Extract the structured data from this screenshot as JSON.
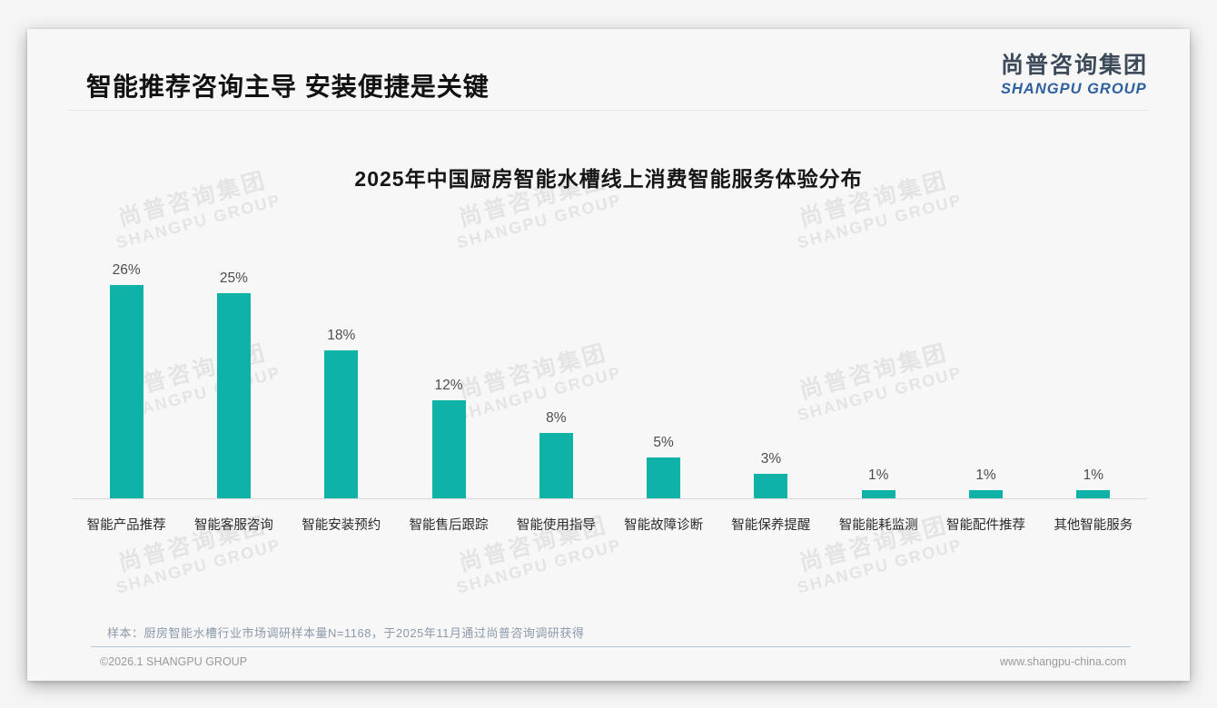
{
  "header": {
    "title": "智能推荐咨询主导 安装便捷是关键",
    "logo_zh": "尚普咨询集团",
    "logo_en": "SHANGPU GROUP"
  },
  "chart_data": {
    "type": "bar",
    "title": "2025年中国厨房智能水槽线上消费智能服务体验分布",
    "categories": [
      "智能产品推荐",
      "智能客服咨询",
      "智能安装预约",
      "智能售后跟踪",
      "智能使用指导",
      "智能故障诊断",
      "智能保养提醒",
      "智能能耗监测",
      "智能配件推荐",
      "其他智能服务"
    ],
    "values": [
      26,
      25,
      18,
      12,
      8,
      5,
      3,
      1,
      1,
      1
    ],
    "value_suffix": "%",
    "bar_color": "#0fb2a6",
    "xlabel": "",
    "ylabel": "",
    "ylim": [
      0,
      28
    ],
    "grid": false,
    "legend": "none"
  },
  "footnote": "样本：厨房智能水槽行业市场调研样本量N=1168，于2025年11月通过尚普咨询调研获得",
  "footer": {
    "copyright": "©2026.1 SHANGPU GROUP",
    "website": "www.shangpu-china.com"
  },
  "watermark": {
    "zh": "尚普咨询集团",
    "en": "SHANGPU GROUP"
  },
  "colors": {
    "bar": "#0fb2a6",
    "logo_dark": "#3d4a59",
    "logo_blue": "#2e5f9e"
  }
}
